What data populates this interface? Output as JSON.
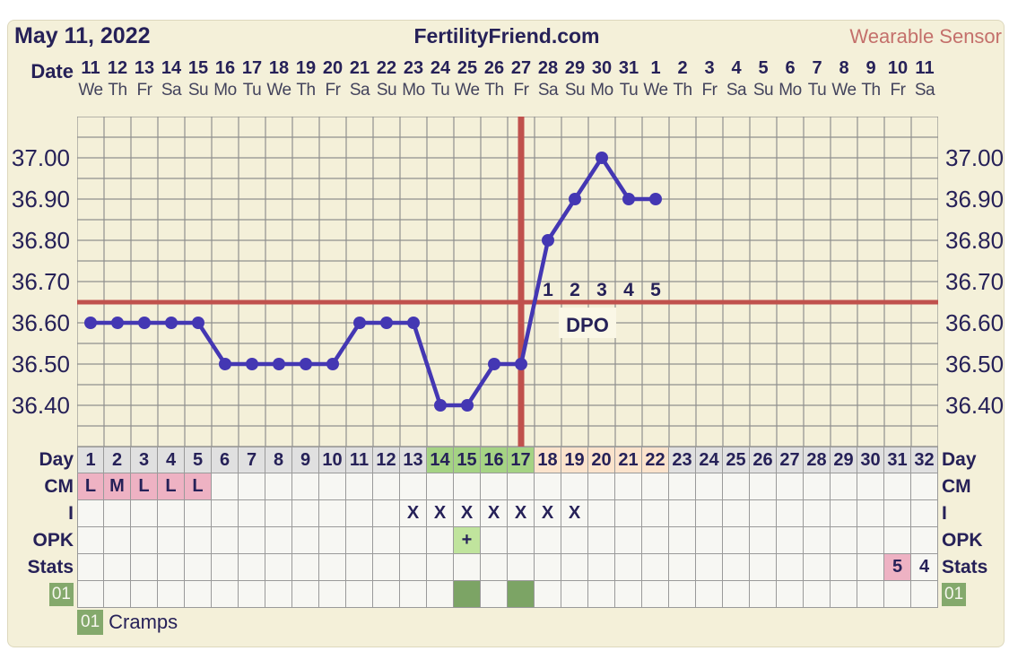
{
  "header": {
    "date_title": "May 11, 2022",
    "site_title": "FertilityFriend.com",
    "mode_label": "Wearable Sensor",
    "date_axis_label": "Date"
  },
  "colors": {
    "panel": "#f4f0d9",
    "grid": "#8f8f8f",
    "temp_line": "#4437b3",
    "red_line": "#c0514d",
    "navy": "#262158",
    "dpo_box": "#faf7e6",
    "cell_bg": {
      "gray": "#e0e0e0",
      "green": "#a5d384",
      "peach": "#fbe3cc",
      "pink": "#eeb2c3",
      "ltgreen": "#c0e49d",
      "green2": "#7ca465"
    },
    "badge_green": "#84a96c"
  },
  "chart_data": {
    "type": "line",
    "title": "Basal body temperature by cycle day (Celsius)",
    "dates": [
      "11",
      "12",
      "13",
      "14",
      "15",
      "16",
      "17",
      "18",
      "19",
      "20",
      "21",
      "22",
      "23",
      "24",
      "25",
      "26",
      "27",
      "28",
      "29",
      "30",
      "31",
      "1",
      "2",
      "3",
      "4",
      "5",
      "6",
      "7",
      "8",
      "9",
      "10",
      "11"
    ],
    "weekdays": [
      "We",
      "Th",
      "Fr",
      "Sa",
      "Su",
      "Mo",
      "Tu",
      "We",
      "Th",
      "Fr",
      "Sa",
      "Su",
      "Mo",
      "Tu",
      "We",
      "Th",
      "Fr",
      "Sa",
      "Su",
      "Mo",
      "Tu",
      "We",
      "Th",
      "Fr",
      "Sa",
      "Su",
      "Mo",
      "Tu",
      "We",
      "Th",
      "Fr",
      "Sa"
    ],
    "cycle_days": [
      1,
      2,
      3,
      4,
      5,
      6,
      7,
      8,
      9,
      10,
      11,
      12,
      13,
      14,
      15,
      16,
      17,
      18,
      19,
      20,
      21,
      22,
      23,
      24,
      25,
      26,
      27,
      28,
      29,
      30,
      31,
      32
    ],
    "temps_c": [
      36.6,
      36.6,
      36.6,
      36.6,
      36.6,
      36.5,
      36.5,
      36.5,
      36.5,
      36.5,
      36.6,
      36.6,
      36.6,
      36.4,
      36.4,
      36.5,
      36.5,
      36.8,
      36.9,
      37.0,
      36.9,
      36.9,
      null,
      null,
      null,
      null,
      null,
      null,
      null,
      null,
      null,
      null
    ],
    "ylim": [
      36.3,
      37.1
    ],
    "ytick_minor_step": 0.05,
    "yticks_labeled": [
      36.4,
      36.5,
      36.6,
      36.7,
      36.8,
      36.9,
      37.0
    ],
    "coverline_c": 36.65,
    "ovulation_day": 17,
    "dpo": {
      "days": [
        18,
        19,
        20,
        21,
        22
      ],
      "labels": [
        "1",
        "2",
        "3",
        "4",
        "5"
      ],
      "caption": "DPO"
    },
    "grid": "on",
    "legend_position": "none"
  },
  "table": {
    "rows": [
      {
        "name": "day",
        "label": "Day",
        "right_label": "Day",
        "cells": [
          {
            "t": "1",
            "bg": "gray"
          },
          {
            "t": "2",
            "bg": "gray"
          },
          {
            "t": "3",
            "bg": "gray"
          },
          {
            "t": "4",
            "bg": "gray"
          },
          {
            "t": "5",
            "bg": "gray"
          },
          {
            "t": "6",
            "bg": "gray"
          },
          {
            "t": "7",
            "bg": "gray"
          },
          {
            "t": "8",
            "bg": "gray"
          },
          {
            "t": "9",
            "bg": "gray"
          },
          {
            "t": "10",
            "bg": "gray"
          },
          {
            "t": "11",
            "bg": "gray"
          },
          {
            "t": "12",
            "bg": "gray"
          },
          {
            "t": "13",
            "bg": "gray"
          },
          {
            "t": "14",
            "bg": "green"
          },
          {
            "t": "15",
            "bg": "green"
          },
          {
            "t": "16",
            "bg": "green"
          },
          {
            "t": "17",
            "bg": "green"
          },
          {
            "t": "18",
            "bg": "peach"
          },
          {
            "t": "19",
            "bg": "peach"
          },
          {
            "t": "20",
            "bg": "peach"
          },
          {
            "t": "21",
            "bg": "peach"
          },
          {
            "t": "22",
            "bg": "peach"
          },
          {
            "t": "23",
            "bg": "gray"
          },
          {
            "t": "24",
            "bg": "gray"
          },
          {
            "t": "25",
            "bg": "gray"
          },
          {
            "t": "26",
            "bg": "gray"
          },
          {
            "t": "27",
            "bg": "gray"
          },
          {
            "t": "28",
            "bg": "gray"
          },
          {
            "t": "29",
            "bg": "gray"
          },
          {
            "t": "30",
            "bg": "gray"
          },
          {
            "t": "31",
            "bg": "gray"
          },
          {
            "t": "32",
            "bg": "gray"
          }
        ]
      },
      {
        "name": "cm",
        "label": "CM",
        "right_label": "CM",
        "cells": [
          {
            "t": "L",
            "bg": "pink"
          },
          {
            "t": "M",
            "bg": "pink"
          },
          {
            "t": "L",
            "bg": "pink"
          },
          {
            "t": "L",
            "bg": "pink"
          },
          {
            "t": "L",
            "bg": "pink"
          },
          null,
          null,
          null,
          null,
          null,
          null,
          null,
          null,
          null,
          null,
          null,
          null,
          null,
          null,
          null,
          null,
          null,
          null,
          null,
          null,
          null,
          null,
          null,
          null,
          null,
          null,
          null
        ]
      },
      {
        "name": "intercourse",
        "label": "I",
        "right_label": "I",
        "cells": [
          null,
          null,
          null,
          null,
          null,
          null,
          null,
          null,
          null,
          null,
          null,
          null,
          {
            "t": "X"
          },
          {
            "t": "X"
          },
          {
            "t": "X"
          },
          {
            "t": "X"
          },
          {
            "t": "X"
          },
          {
            "t": "X"
          },
          {
            "t": "X"
          },
          null,
          null,
          null,
          null,
          null,
          null,
          null,
          null,
          null,
          null,
          null,
          null,
          null
        ]
      },
      {
        "name": "opk",
        "label": "OPK",
        "right_label": "OPK",
        "cells": [
          null,
          null,
          null,
          null,
          null,
          null,
          null,
          null,
          null,
          null,
          null,
          null,
          null,
          null,
          {
            "t": "+",
            "bg": "ltgreen"
          },
          null,
          null,
          null,
          null,
          null,
          null,
          null,
          null,
          null,
          null,
          null,
          null,
          null,
          null,
          null,
          null,
          null
        ]
      },
      {
        "name": "stats",
        "label": "Stats",
        "right_label": "Stats",
        "cells": [
          null,
          null,
          null,
          null,
          null,
          null,
          null,
          null,
          null,
          null,
          null,
          null,
          null,
          null,
          null,
          null,
          null,
          null,
          null,
          null,
          null,
          null,
          null,
          null,
          null,
          null,
          null,
          null,
          null,
          null,
          {
            "t": "5",
            "bg": "pink"
          },
          {
            "t": "4"
          }
        ]
      },
      {
        "name": "marker-01",
        "label": "01",
        "right_label": "01",
        "label_style": "badge",
        "cells": [
          null,
          null,
          null,
          null,
          null,
          null,
          null,
          null,
          null,
          null,
          null,
          null,
          null,
          null,
          {
            "bg": "green2"
          },
          null,
          {
            "bg": "green2"
          },
          null,
          null,
          null,
          null,
          null,
          null,
          null,
          null,
          null,
          null,
          null,
          null,
          null,
          null,
          null
        ]
      }
    ]
  },
  "legend": {
    "badge": "01",
    "label": "Cramps"
  }
}
